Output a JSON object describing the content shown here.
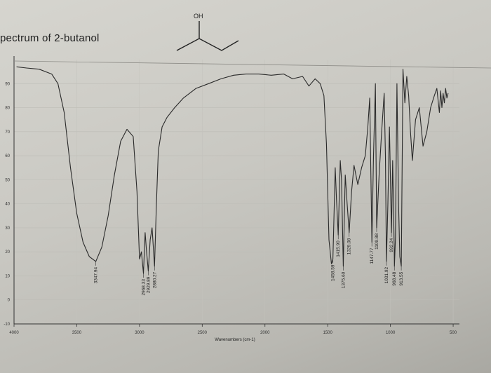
{
  "title": "pectrum of 2-butanol",
  "molecule_label": "OH",
  "chart_data": {
    "type": "line",
    "title": "pectrum of 2-butanol",
    "xlabel": "Wavenumbers (cm-1)",
    "ylabel": "",
    "xlim": [
      4000,
      450
    ],
    "ylim": [
      -10,
      100
    ],
    "x_ticks": [
      "4000",
      "3500",
      "3000",
      "2500",
      "2000",
      "1500",
      "1000",
      "500"
    ],
    "y_ticks": [
      "90",
      "80",
      "70",
      "60",
      "50",
      "40",
      "30",
      "20",
      "10",
      "0",
      "-10"
    ],
    "grid": true,
    "series": [
      {
        "x": [
          3980,
          3900,
          3800,
          3700,
          3650,
          3600,
          3550,
          3500,
          3450,
          3400,
          3347.94,
          3300,
          3250,
          3200,
          3150,
          3100,
          3050,
          3020,
          3000,
          2985,
          2968.33,
          2955,
          2945,
          2929.89,
          2915,
          2900,
          2880.27,
          2865,
          2850,
          2820,
          2780,
          2720,
          2650,
          2550,
          2450,
          2350,
          2250,
          2150,
          2050,
          1950,
          1850,
          1780,
          1700,
          1650,
          1600,
          1560,
          1530,
          1510,
          1490,
          1470,
          1458.59,
          1440,
          1430,
          1415.9,
          1400,
          1390,
          1375.6,
          1360,
          1345,
          1329.08,
          1310,
          1290,
          1260,
          1230,
          1200,
          1180,
          1165,
          1150,
          1147.77,
          1135,
          1120,
          1109.88,
          1090,
          1070,
          1050,
          1040,
          1031.92,
          1020,
          1008,
          992,
          982,
          970,
          968.48,
          960,
          948,
          935,
          925,
          913.55,
          900,
          885,
          870,
          855,
          840,
          825,
          800,
          770,
          740,
          710,
          680,
          650,
          630,
          610,
          600,
          590,
          580,
          570,
          560,
          550,
          540
        ],
        "y": [
          97,
          96.5,
          96,
          94,
          90,
          78,
          55,
          36,
          24,
          18,
          16,
          22,
          35,
          52,
          66,
          71,
          68,
          45,
          17,
          20,
          11,
          28,
          21,
          12,
          25,
          30,
          14,
          40,
          62,
          72,
          76,
          80,
          84,
          88,
          90,
          92,
          93.5,
          94,
          94,
          93.5,
          94,
          92,
          93,
          89,
          92,
          90,
          85,
          65,
          25,
          15,
          17,
          55,
          42,
          27,
          58,
          50,
          14,
          52,
          40,
          28,
          45,
          56,
          48,
          55,
          60,
          72,
          84,
          32,
          24,
          60,
          90,
          30,
          52,
          70,
          86,
          60,
          16,
          40,
          72,
          28,
          58,
          22,
          14,
          26,
          90,
          40,
          18,
          14,
          96,
          82,
          93,
          85,
          70,
          58,
          75,
          80,
          64,
          70,
          80,
          85,
          88,
          78,
          87,
          80,
          86,
          82,
          88,
          84,
          86
        ]
      }
    ],
    "peaks": [
      "3347.94",
      "2968.33",
      "2929.89",
      "2880.27",
      "1458.59",
      "1415.90",
      "1375.60",
      "1329.08",
      "1147.77",
      "1109.88",
      "1031.92",
      "992.24",
      "968.48",
      "913.55"
    ]
  }
}
